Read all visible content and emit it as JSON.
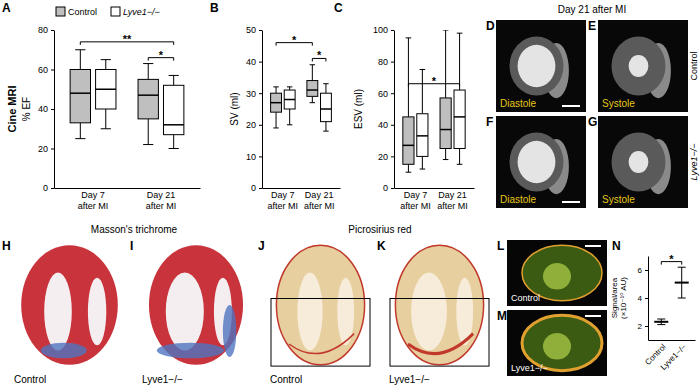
{
  "chart_data": [
    {
      "panel": "A",
      "type": "box",
      "title": "Cine MRI",
      "y_label": "% EF",
      "categories": [
        "Day 7\nafter MI",
        "Day 21\nafter MI"
      ],
      "series": [
        {
          "name": "Control",
          "color": "#bfbfbf",
          "values": [
            {
              "min": 25,
              "q1": 33,
              "median": 48,
              "q3": 60,
              "max": 70
            },
            {
              "min": 22,
              "q1": 35,
              "median": 47,
              "q3": 55,
              "max": 63
            }
          ]
        },
        {
          "name": "Lyve1−/−",
          "color": "#ffffff",
          "values": [
            {
              "min": 30,
              "q1": 40,
              "median": 50,
              "q3": 60,
              "max": 65
            },
            {
              "min": 20,
              "q1": 27,
              "median": 32,
              "q3": 52,
              "max": 57
            }
          ]
        }
      ],
      "ylim": [
        0,
        80
      ],
      "yticks": [
        0,
        20,
        40,
        60,
        80
      ],
      "legend": "top left",
      "annotations": [
        {
          "text": "**",
          "from": [
            0,
            0
          ],
          "to": [
            1,
            1
          ],
          "y": 74
        },
        {
          "text": "*",
          "from": [
            1,
            0
          ],
          "to": [
            1,
            1
          ],
          "y": 66
        }
      ]
    },
    {
      "panel": "B",
      "type": "box",
      "y_label": "SV (ml)",
      "categories": [
        "Day 7\nafter MI",
        "Day 21\nafter MI"
      ],
      "series": [
        {
          "color": "#bfbfbf",
          "values": [
            {
              "min": 19,
              "q1": 24,
              "median": 27,
              "q3": 30,
              "max": 32
            },
            {
              "min": 27,
              "q1": 29,
              "median": 31,
              "q3": 34,
              "max": 39
            }
          ]
        },
        {
          "color": "#ffffff",
          "values": [
            {
              "min": 20,
              "q1": 25,
              "median": 28,
              "q3": 31,
              "max": 32
            },
            {
              "min": 18,
              "q1": 21,
              "median": 25,
              "q3": 30,
              "max": 33
            }
          ]
        }
      ],
      "ylim": [
        0,
        50
      ],
      "yticks": [
        0,
        10,
        20,
        30,
        40,
        50
      ],
      "annotations": [
        {
          "text": "*",
          "from": [
            0,
            0
          ],
          "to": [
            1,
            0
          ],
          "y": 46
        },
        {
          "text": "*",
          "from": [
            1,
            0
          ],
          "to": [
            1,
            1
          ],
          "y": 41
        }
      ]
    },
    {
      "panel": "C",
      "type": "box",
      "y_label": "ESV (ml)",
      "categories": [
        "Day 7\nafter MI",
        "Day 21\nafter MI"
      ],
      "series": [
        {
          "color": "#bfbfbf",
          "values": [
            {
              "min": 10,
              "q1": 15,
              "median": 27,
              "q3": 45,
              "max": 95
            },
            {
              "min": 18,
              "q1": 25,
              "median": 37,
              "q3": 57,
              "max": 100
            }
          ]
        },
        {
          "color": "#ffffff",
          "values": [
            {
              "min": 12,
              "q1": 20,
              "median": 33,
              "q3": 47,
              "max": 75
            },
            {
              "min": 15,
              "q1": 25,
              "median": 45,
              "q3": 62,
              "max": 98
            }
          ]
        }
      ],
      "ylim": [
        0,
        100
      ],
      "yticks": [
        0,
        20,
        40,
        60,
        80,
        100
      ],
      "annotations": [
        {
          "text": "*",
          "from": [
            0,
            0
          ],
          "to": [
            1,
            1
          ],
          "y": 66
        }
      ]
    },
    {
      "panel": "N",
      "type": "dot",
      "y_label": "Signal/area\n(×10⁻¹⁰ AU)",
      "categories": [
        "Control",
        "Lyve1−/−"
      ],
      "values": [
        2.3,
        5.1
      ],
      "errors": [
        0.2,
        1.1
      ],
      "color": "#000000",
      "ylim": [
        1,
        7
      ],
      "yticks": [
        2,
        4,
        6
      ],
      "annotations": [
        {
          "text": "*",
          "from": [
            0
          ],
          "to": [
            1
          ],
          "y": 6.6
        }
      ]
    }
  ],
  "figure": {
    "headers": {
      "mri": "Day 21 after MI",
      "masson": "Masson's trichrome",
      "picro": "Picrosirius red"
    },
    "row_labels": [
      "Control",
      "Lyve1−/−"
    ],
    "images": [
      {
        "panel": "D",
        "caption": "Diastole"
      },
      {
        "panel": "E",
        "caption": "Systole"
      },
      {
        "panel": "F",
        "caption": "Diastole"
      },
      {
        "panel": "G",
        "caption": "Systole"
      },
      {
        "panel": "H",
        "caption": "Control"
      },
      {
        "panel": "I",
        "caption": "Lyve1−/−"
      },
      {
        "panel": "J",
        "caption": "Control"
      },
      {
        "panel": "K",
        "caption": "Lyve1−/−"
      },
      {
        "panel": "L",
        "caption": "Control"
      },
      {
        "panel": "M",
        "caption": "Lyve1−/−"
      }
    ]
  }
}
